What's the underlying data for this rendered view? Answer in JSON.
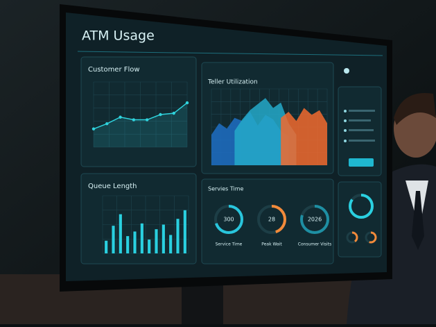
{
  "title": "ATM Usage",
  "customer_flow": {
    "title": "Customer Flow",
    "type": "line",
    "color": "#2fd3dd",
    "ylim": [
      0,
      100
    ],
    "values": [
      28,
      36,
      46,
      42,
      42,
      50,
      52,
      68
    ]
  },
  "teller_utilization": {
    "title": "Teller Utilization",
    "type": "area",
    "ylim": [
      0,
      100
    ],
    "series": [
      {
        "color": "#1f6fc4",
        "values": [
          40,
          55,
          48,
          62,
          58,
          70,
          52,
          66,
          60,
          45,
          38,
          null,
          null,
          null,
          null,
          null
        ]
      },
      {
        "color": "#25a9c9",
        "values": [
          null,
          null,
          null,
          45,
          60,
          72,
          80,
          88,
          75,
          82,
          55,
          40,
          null,
          null,
          null,
          null
        ]
      },
      {
        "color": "#f26a2e",
        "values": [
          null,
          null,
          null,
          null,
          null,
          null,
          null,
          null,
          null,
          62,
          70,
          58,
          75,
          66,
          72,
          55
        ]
      }
    ]
  },
  "queue_length": {
    "title": "Queue Length",
    "type": "bar",
    "color": "#2ad0e0",
    "ylim": [
      0,
      100
    ],
    "values": [
      22,
      48,
      68,
      30,
      38,
      52,
      24,
      42,
      50,
      32,
      60,
      75
    ]
  },
  "service_time": {
    "title": "Servies Time",
    "gauges": [
      {
        "text": "300",
        "label": "Service Time",
        "percent": 70,
        "color": "#29c5dc"
      },
      {
        "text": "28",
        "label": "Peak Wait",
        "percent": 45,
        "color": "#f28a3a"
      },
      {
        "text": "2026",
        "label": "Consumer Visits",
        "percent": 80,
        "color": "#1e8fa3"
      }
    ]
  },
  "side_gauges": [
    {
      "percent": 85,
      "color": "#2ad0e0"
    },
    {
      "percent": 40,
      "color": "#f28a3a"
    },
    {
      "percent": 55,
      "color": "#f28a3a"
    }
  ]
}
